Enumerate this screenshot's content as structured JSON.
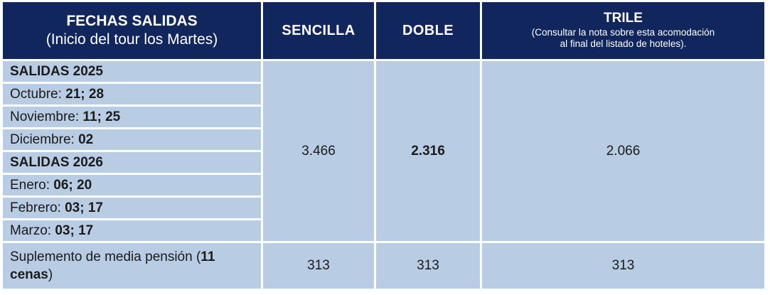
{
  "colors": {
    "header_bg": "#11265C",
    "cell_bg": "#B8CCE4",
    "separator": "#FFFFFF",
    "header_text": "#FFFFFF",
    "body_text": "#1B1B1B"
  },
  "header": {
    "fechas_title": "FECHAS SALIDAS",
    "fechas_subtitle": "(Inicio del tour los Martes)",
    "sencilla": "SENCILLA",
    "doble": "DOBLE",
    "trile_title": "TRILE",
    "trile_note_line1": "(Consultar la nota sobre esta acomodación",
    "trile_note_line2": "al final del listado de hoteles)."
  },
  "date_rows": [
    {
      "prefix": "",
      "bold": "SALIDAS 2025"
    },
    {
      "prefix": "Octubre: ",
      "bold": "21; 28"
    },
    {
      "prefix": "Noviembre: ",
      "bold": "11; 25"
    },
    {
      "prefix": "Diciembre: ",
      "bold": "02"
    },
    {
      "prefix": "",
      "bold": "SALIDAS 2026"
    },
    {
      "prefix": "Enero: ",
      "bold": "06; 20"
    },
    {
      "prefix": "Febrero: ",
      "bold": "03; 17"
    },
    {
      "prefix": "Marzo: ",
      "bold": "03; 17"
    }
  ],
  "prices": {
    "sencilla": "3.466",
    "doble": "2.316",
    "trile": "2.066"
  },
  "supplement": {
    "prefix": "Suplemento de media pensión (",
    "bold": "11 cenas",
    "suffix": ")",
    "sencilla": "313",
    "doble": "313",
    "trile": "313"
  }
}
